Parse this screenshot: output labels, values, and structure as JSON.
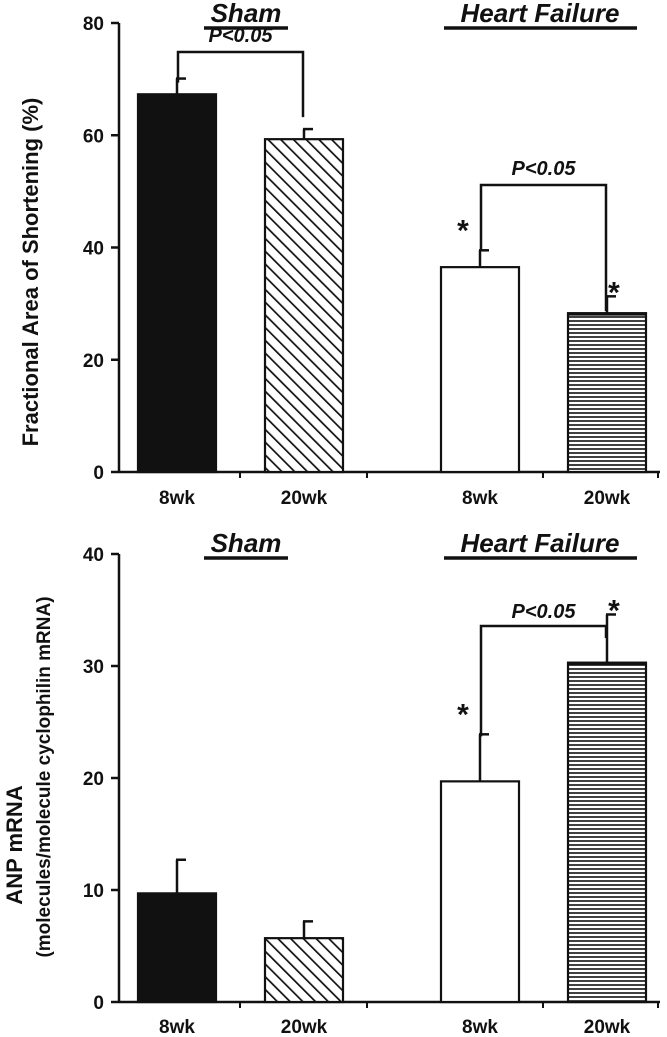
{
  "colors": {
    "ink": "#111111",
    "background": "#ffffff"
  },
  "chart_data": [
    {
      "type": "bar",
      "title": "",
      "ylabel": "Fractional Area of Shortening (%)",
      "ylabel_sub": "",
      "ylim": [
        0,
        80
      ],
      "yticks": [
        0,
        20,
        40,
        60,
        80
      ],
      "categories": [
        "8wk",
        "20wk",
        "8wk",
        "20wk"
      ],
      "groups": [
        {
          "label": "Sham",
          "categories": [
            0,
            1
          ]
        },
        {
          "label": "Heart Failure",
          "categories": [
            2,
            3
          ]
        }
      ],
      "values": [
        67.3,
        59.3,
        36.5,
        28.3
      ],
      "errors": [
        2.8,
        1.8,
        3.0,
        3.0
      ],
      "fills": [
        "solid",
        "diagonal-hatch",
        "open",
        "horizontal-hatch"
      ],
      "stars": [
        false,
        false,
        true,
        true
      ],
      "comparisons": [
        {
          "from": 0,
          "to": 1,
          "label": "P<0.05"
        },
        {
          "from": 2,
          "to": 3,
          "label": "P<0.05"
        }
      ],
      "grid": false
    },
    {
      "type": "bar",
      "title": "",
      "ylabel": "ANP mRNA",
      "ylabel_sub": "(molecules/molecule cyclophilin mRNA)",
      "ylim": [
        0,
        40
      ],
      "yticks": [
        0,
        10,
        20,
        30,
        40
      ],
      "categories": [
        "8wk",
        "20wk",
        "8wk",
        "20wk"
      ],
      "groups": [
        {
          "label": "Sham",
          "categories": [
            0,
            1
          ]
        },
        {
          "label": "Heart Failure",
          "categories": [
            2,
            3
          ]
        }
      ],
      "values": [
        9.7,
        5.7,
        19.7,
        30.3
      ],
      "errors": [
        3.0,
        1.5,
        4.2,
        4.3
      ],
      "fills": [
        "solid",
        "diagonal-hatch",
        "open",
        "horizontal-hatch"
      ],
      "stars": [
        false,
        false,
        true,
        true
      ],
      "comparisons": [
        {
          "from": 2,
          "to": 3,
          "label": "P<0.05"
        }
      ],
      "grid": false
    }
  ]
}
